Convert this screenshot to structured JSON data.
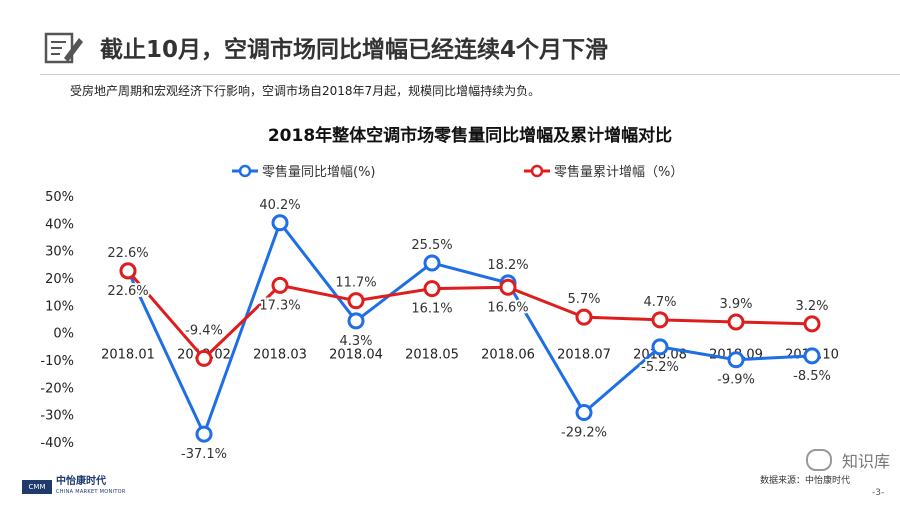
{
  "header": {
    "title": "截止10月，空调市场同比增幅已经连续4个月下滑",
    "subtitle": "受房地产周期和宏观经济下行影响，空调市场自2018年7月起，规模同比增幅持续为负。"
  },
  "chart_data": {
    "type": "line",
    "title": "2018年整体空调市场零售量同比增幅及累计增幅对比",
    "categories": [
      "2018.01",
      "2018.02",
      "2018.03",
      "2018.04",
      "2018.05",
      "2018.06",
      "2018.07",
      "2018.08",
      "2018.09",
      "2018.10"
    ],
    "yticks": [
      "50%",
      "40%",
      "30%",
      "20%",
      "10%",
      "0%",
      "-10%",
      "-20%",
      "-30%",
      "-40%"
    ],
    "ylim": [
      -40,
      50
    ],
    "grid": false,
    "legend_position": "top",
    "series": [
      {
        "name": "零售量同比增幅(%)",
        "color": "#1e6ee6",
        "values": [
          22.6,
          -37.1,
          40.2,
          4.3,
          25.5,
          18.2,
          -29.2,
          -5.2,
          -9.9,
          -8.5
        ],
        "labels": [
          "22.6%",
          "-37.1%",
          "40.2%",
          "4.3%",
          "25.5%",
          "18.2%",
          "-29.2%",
          "-5.2%",
          "-9.9%",
          "-8.5%"
        ]
      },
      {
        "name": "零售量累计增幅（%）",
        "color": "#e01d1d",
        "values": [
          22.6,
          -9.4,
          17.3,
          11.7,
          16.1,
          16.6,
          5.7,
          4.7,
          3.9,
          3.2
        ],
        "labels": [
          "22.6%",
          "-9.4%",
          "17.3%",
          "11.7%",
          "16.1%",
          "16.6%",
          "5.7%",
          "4.7%",
          "3.9%",
          "3.2%"
        ]
      }
    ]
  },
  "footer": {
    "logo_text": "中怡康时代",
    "logo_sub": "CHINA MARKET MONITOR",
    "logo_mark": "CMM",
    "source": "数据来源：中怡康时代",
    "wechat": "知识库",
    "page": "-3-"
  },
  "colors": {
    "accent_blue": "#1e6ee6",
    "accent_red": "#e01d1d",
    "title": "#333333"
  }
}
